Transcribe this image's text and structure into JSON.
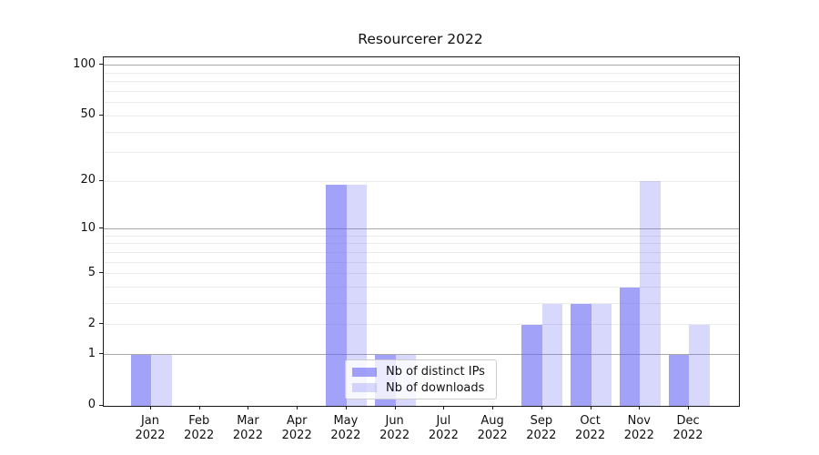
{
  "title": "Resourcerer 2022",
  "chart_data": {
    "type": "bar",
    "title": "Resourcerer 2022",
    "scale": "log1p",
    "grid": "horizontal, major and minor",
    "legend_position": "lower center (overlapping Jun bars)",
    "months": [
      "Jan",
      "Feb",
      "Mar",
      "Apr",
      "May",
      "Jun",
      "Jul",
      "Aug",
      "Sep",
      "Oct",
      "Nov",
      "Dec"
    ],
    "year": "2022",
    "categories": [
      "Jan 2022",
      "Feb 2022",
      "Mar 2022",
      "Apr 2022",
      "May 2022",
      "Jun 2022",
      "Jul 2022",
      "Aug 2022",
      "Sep 2022",
      "Oct 2022",
      "Nov 2022",
      "Dec 2022"
    ],
    "series": [
      {
        "name": "Nb of distinct IPs",
        "fill": "rgba(100,100,245,0.60)",
        "hex_over_white": "#a2a2f9",
        "values": [
          1,
          0,
          0,
          0,
          19,
          1,
          0,
          0,
          2,
          3,
          4,
          1
        ]
      },
      {
        "name": "Nb of downloads",
        "fill": "rgba(100,100,245,0.25)",
        "hex_over_white": "#d8d8fc",
        "values": [
          1,
          0,
          0,
          0,
          19,
          1,
          0,
          0,
          3,
          3,
          20,
          2
        ]
      }
    ],
    "ytick_values": [
      0,
      1,
      2,
      5,
      10,
      20,
      50,
      100
    ],
    "ytick_labels": [
      "0",
      "1",
      "2",
      "5",
      "10",
      "20",
      "50",
      "100"
    ],
    "major_gridline_values": [
      1,
      10,
      100
    ],
    "minor_gridline_values": [
      2,
      3,
      4,
      5,
      6,
      7,
      8,
      9,
      20,
      30,
      40,
      50,
      60,
      70,
      80,
      90
    ],
    "ylim": [
      0,
      112
    ],
    "colors": {
      "bar_base": "#6464f5",
      "major_grid": "#a9a9a9",
      "minor_grid": "#ebebeb",
      "axis": "#1a1a1a",
      "legend_border": "#cccccc"
    }
  }
}
